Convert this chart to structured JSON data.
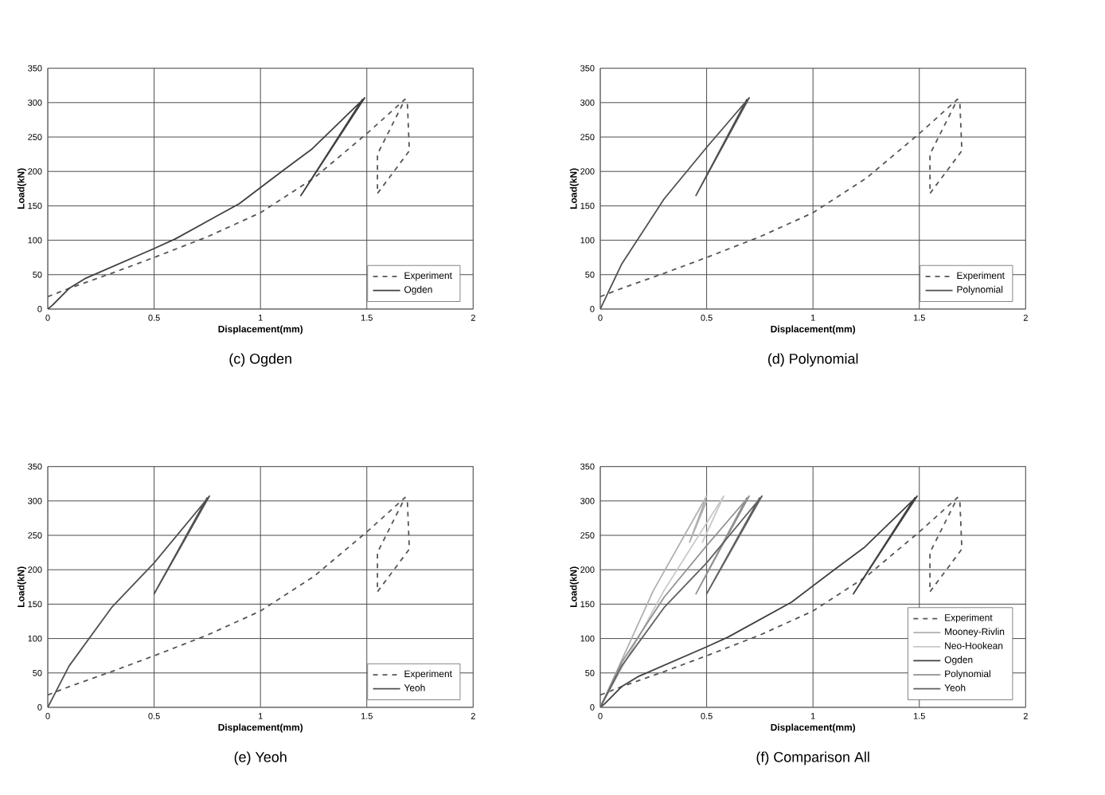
{
  "chart_data": [
    {
      "type": "line",
      "title": "(c) Ogden",
      "xlabel": "Displacement(mm)",
      "ylabel": "Load(kN)",
      "xlim": [
        0,
        2
      ],
      "ylim": [
        0,
        350
      ],
      "xticks": [
        0,
        0.5,
        1,
        1.5,
        2
      ],
      "yticks": [
        0,
        50,
        100,
        150,
        200,
        250,
        300,
        350
      ],
      "grid": true,
      "legend": "bottom right",
      "series": [
        {
          "name": "Experiment",
          "color": "#555555",
          "line_style": "dashed",
          "x": [
            0,
            0.1,
            0.3,
            0.5,
            0.75,
            1.0,
            1.25,
            1.5,
            1.68,
            1.55,
            1.55,
            1.7,
            1.69
          ],
          "values": [
            18,
            30,
            52,
            75,
            105,
            140,
            190,
            255,
            305,
            225,
            168,
            230,
            305
          ]
        },
        {
          "name": "Ogden",
          "color": "#404040",
          "line_style": "solid",
          "x": [
            0,
            0.02,
            0.1,
            0.18,
            0.5,
            0.6,
            0.9,
            1.1,
            1.24,
            1.49,
            1.19,
            1.48
          ],
          "values": [
            0,
            5,
            30,
            45,
            88,
            102,
            153,
            200,
            232,
            307,
            165,
            305
          ]
        }
      ]
    },
    {
      "type": "line",
      "title": "(d) Polynomial",
      "xlabel": "Displacement(mm)",
      "ylabel": "Load(kN)",
      "xlim": [
        0,
        2
      ],
      "ylim": [
        0,
        350
      ],
      "xticks": [
        0,
        0.5,
        1,
        1.5,
        2
      ],
      "yticks": [
        0,
        50,
        100,
        150,
        200,
        250,
        300,
        350
      ],
      "grid": true,
      "legend": "bottom right",
      "series": [
        {
          "name": "Experiment",
          "color": "#555555",
          "line_style": "dashed",
          "x": [
            0,
            0.1,
            0.3,
            0.5,
            0.75,
            1.0,
            1.25,
            1.5,
            1.68,
            1.55,
            1.55,
            1.7,
            1.69
          ],
          "values": [
            18,
            30,
            52,
            75,
            105,
            140,
            190,
            255,
            305,
            225,
            168,
            230,
            305
          ]
        },
        {
          "name": "Polynomial",
          "color": "#505050",
          "line_style": "solid",
          "x": [
            0,
            0.1,
            0.3,
            0.5,
            0.7,
            0.45,
            0.69
          ],
          "values": [
            0,
            65,
            160,
            235,
            307,
            165,
            305
          ]
        }
      ]
    },
    {
      "type": "line",
      "title": "(e) Yeoh",
      "xlabel": "Displacement(mm)",
      "ylabel": "Load(kN)",
      "xlim": [
        0,
        2
      ],
      "ylim": [
        0,
        350
      ],
      "xticks": [
        0,
        0.5,
        1,
        1.5,
        2
      ],
      "yticks": [
        0,
        50,
        100,
        150,
        200,
        250,
        300,
        350
      ],
      "grid": true,
      "legend": "bottom right",
      "series": [
        {
          "name": "Experiment",
          "color": "#555555",
          "line_style": "dashed",
          "x": [
            0,
            0.1,
            0.3,
            0.5,
            0.75,
            1.0,
            1.25,
            1.5,
            1.68,
            1.55,
            1.55,
            1.7,
            1.69
          ],
          "values": [
            18,
            30,
            52,
            75,
            105,
            140,
            190,
            255,
            305,
            225,
            168,
            230,
            305
          ]
        },
        {
          "name": "Yeoh",
          "color": "#505050",
          "line_style": "solid",
          "x": [
            0,
            0.1,
            0.3,
            0.5,
            0.76,
            0.5,
            0.75
          ],
          "values": [
            0,
            60,
            145,
            210,
            307,
            165,
            305
          ]
        }
      ]
    },
    {
      "type": "line",
      "title": "(f) Comparison All",
      "xlabel": "Displacement(mm)",
      "ylabel": "Load(kN)",
      "xlim": [
        0,
        2
      ],
      "ylim": [
        0,
        350
      ],
      "xticks": [
        0,
        0.5,
        1,
        1.5,
        2
      ],
      "yticks": [
        0,
        50,
        100,
        150,
        200,
        250,
        300,
        350
      ],
      "grid": true,
      "legend": "bottom right",
      "series": [
        {
          "name": "Experiment",
          "color": "#555555",
          "line_style": "dashed",
          "x": [
            0,
            0.1,
            0.3,
            0.5,
            0.75,
            1.0,
            1.25,
            1.5,
            1.68,
            1.55,
            1.55,
            1.7,
            1.69
          ],
          "values": [
            18,
            30,
            52,
            75,
            105,
            140,
            190,
            255,
            305,
            225,
            168,
            230,
            305
          ]
        },
        {
          "name": "Mooney-Rivlin",
          "color": "#b0b0b0",
          "line_style": "solid",
          "x": [
            0,
            0.25,
            0.5,
            0.42,
            0.5
          ],
          "values": [
            0,
            170,
            307,
            240,
            300
          ]
        },
        {
          "name": "Neo-Hookean",
          "color": "#c8c8c8",
          "line_style": "solid",
          "x": [
            0,
            0.3,
            0.58,
            0.48,
            0.57
          ],
          "values": [
            0,
            170,
            307,
            240,
            300
          ]
        },
        {
          "name": "Ogden",
          "color": "#404040",
          "line_style": "solid",
          "x": [
            0,
            0.02,
            0.1,
            0.18,
            0.5,
            0.6,
            0.9,
            1.1,
            1.24,
            1.49,
            1.19,
            1.48
          ],
          "values": [
            0,
            5,
            30,
            45,
            88,
            102,
            153,
            200,
            232,
            307,
            165,
            305
          ]
        },
        {
          "name": "Polynomial",
          "color": "#909090",
          "line_style": "solid",
          "x": [
            0,
            0.1,
            0.3,
            0.5,
            0.7,
            0.45,
            0.69
          ],
          "values": [
            0,
            65,
            160,
            235,
            307,
            165,
            305
          ]
        },
        {
          "name": "Yeoh",
          "color": "#606060",
          "line_style": "solid",
          "x": [
            0,
            0.1,
            0.3,
            0.5,
            0.76,
            0.5,
            0.75
          ],
          "values": [
            0,
            60,
            145,
            210,
            307,
            165,
            305
          ]
        }
      ]
    }
  ]
}
